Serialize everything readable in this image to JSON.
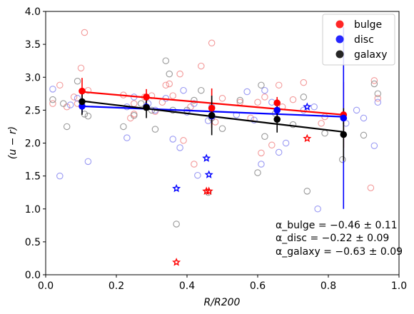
{
  "chart_data": {
    "type": "scatter",
    "xlabel": "R/R200",
    "ylabel": "(u − r)",
    "xlim": [
      0.0,
      1.0
    ],
    "ylim": [
      0.0,
      4.0
    ],
    "x_ticks": [
      "0.0",
      "0.2",
      "0.4",
      "0.6",
      "0.8",
      "1.0"
    ],
    "y_ticks": [
      "0.0",
      "0.5",
      "1.0",
      "1.5",
      "2.0",
      "2.5",
      "3.0",
      "3.5",
      "4.0"
    ],
    "x_tick_values": [
      0.0,
      0.2,
      0.4,
      0.6,
      0.8,
      1.0
    ],
    "y_tick_values": [
      0.0,
      0.5,
      1.0,
      1.5,
      2.0,
      2.5,
      3.0,
      3.5,
      4.0
    ],
    "grid": false,
    "legend_position": "top-right",
    "legend": [
      "bulge",
      "disc",
      "galaxy"
    ],
    "colors": {
      "bulge": "#ff0000",
      "disc": "#0000ff",
      "galaxy": "#000000"
    },
    "annotations": [
      "α_bulge = −0.46 ± 0.11",
      "α_disc = −0.22 ± 0.09",
      "α_galaxy = −0.63 ± 0.09"
    ],
    "binned_series": [
      {
        "name": "bulge",
        "color": "#ff0000",
        "x": [
          0.103,
          0.285,
          0.47,
          0.655,
          0.843
        ],
        "y": [
          2.79,
          2.7,
          2.53,
          2.61,
          2.43
        ],
        "err": [
          0.2,
          0.12,
          0.3,
          0.09,
          0.5
        ]
      },
      {
        "name": "disc",
        "color": "#0000ff",
        "x": [
          0.103,
          0.285,
          0.47,
          0.655,
          0.843
        ],
        "y": [
          2.56,
          2.55,
          2.41,
          2.5,
          2.38
        ],
        "err": [
          0.1,
          0.06,
          0.1,
          0.07,
          1.38
        ]
      },
      {
        "name": "galaxy",
        "color": "#000000",
        "x": [
          0.103,
          0.285,
          0.47,
          0.655,
          0.843
        ],
        "y": [
          2.63,
          2.54,
          2.42,
          2.36,
          2.13
        ],
        "err": [
          0.2,
          0.16,
          0.3,
          0.2,
          0.4
        ]
      }
    ],
    "fit_lines": [
      {
        "name": "bulge",
        "color": "#ff0000",
        "x": [
          0.1,
          0.843
        ],
        "y": [
          2.78,
          2.43
        ]
      },
      {
        "name": "disc",
        "color": "#0000ff",
        "x": [
          0.1,
          0.843
        ],
        "y": [
          2.56,
          2.4
        ]
      },
      {
        "name": "galaxy",
        "color": "#000000",
        "x": [
          0.1,
          0.843
        ],
        "y": [
          2.64,
          2.17
        ]
      }
    ],
    "outliers": [
      {
        "name": "bulge",
        "color": "#ff0000",
        "x": [
          0.37,
          0.455,
          0.462,
          0.74
        ],
        "y": [
          0.19,
          1.27,
          1.27,
          2.07
        ]
      },
      {
        "name": "disc",
        "color": "#0000ff",
        "x": [
          0.37,
          0.455,
          0.462,
          0.74
        ],
        "y": [
          1.31,
          1.77,
          1.52,
          2.55
        ]
      }
    ],
    "scatter": [
      {
        "name": "bulge",
        "color": "#f08080",
        "x": [
          0.02,
          0.04,
          0.06,
          0.08,
          0.09,
          0.1,
          0.11,
          0.12,
          0.22,
          0.24,
          0.25,
          0.25,
          0.28,
          0.3,
          0.31,
          0.33,
          0.34,
          0.35,
          0.36,
          0.38,
          0.39,
          0.41,
          0.42,
          0.44,
          0.47,
          0.48,
          0.5,
          0.55,
          0.58,
          0.6,
          0.61,
          0.62,
          0.64,
          0.66,
          0.67,
          0.7,
          0.73,
          0.78,
          0.79,
          0.93,
          0.94,
          0.92
        ],
        "y": [
          2.6,
          2.88,
          2.55,
          2.7,
          2.6,
          3.14,
          3.68,
          2.8,
          2.73,
          2.38,
          2.44,
          2.6,
          2.7,
          2.72,
          2.48,
          2.62,
          2.88,
          2.9,
          2.72,
          3.05,
          2.04,
          2.55,
          1.68,
          3.17,
          3.52,
          2.32,
          2.68,
          2.62,
          2.38,
          2.62,
          1.85,
          2.7,
          1.97,
          2.88,
          2.55,
          2.66,
          2.92,
          2.3,
          2.4,
          2.95,
          2.68,
          1.32
        ]
      },
      {
        "name": "disc",
        "color": "#8080f0",
        "x": [
          0.02,
          0.04,
          0.07,
          0.09,
          0.12,
          0.23,
          0.23,
          0.25,
          0.29,
          0.31,
          0.34,
          0.36,
          0.38,
          0.39,
          0.4,
          0.42,
          0.43,
          0.46,
          0.47,
          0.54,
          0.57,
          0.59,
          0.61,
          0.62,
          0.64,
          0.66,
          0.68,
          0.73,
          0.76,
          0.77,
          0.85,
          0.88,
          0.9,
          0.93,
          0.94
        ],
        "y": [
          2.82,
          1.5,
          2.58,
          2.68,
          1.72,
          2.55,
          2.08,
          2.7,
          2.6,
          2.5,
          2.68,
          2.06,
          1.93,
          2.8,
          2.47,
          2.6,
          1.51,
          2.34,
          2.55,
          2.43,
          2.78,
          2.35,
          1.68,
          2.8,
          2.62,
          1.86,
          2.0,
          2.5,
          2.55,
          1.0,
          2.3,
          2.5,
          2.38,
          1.96,
          2.62
        ]
      },
      {
        "name": "galaxy",
        "color": "#808080",
        "x": [
          0.02,
          0.05,
          0.06,
          0.09,
          0.11,
          0.12,
          0.22,
          0.25,
          0.27,
          0.3,
          0.31,
          0.34,
          0.35,
          0.36,
          0.37,
          0.4,
          0.42,
          0.44,
          0.46,
          0.47,
          0.5,
          0.55,
          0.6,
          0.61,
          0.62,
          0.65,
          0.7,
          0.73,
          0.74,
          0.79,
          0.84,
          0.9,
          0.93,
          0.94
        ],
        "y": [
          2.66,
          2.6,
          2.25,
          2.94,
          2.44,
          2.41,
          2.25,
          2.42,
          2.6,
          2.5,
          2.21,
          3.25,
          3.05,
          2.5,
          0.77,
          2.5,
          2.65,
          2.8,
          1.25,
          2.38,
          2.22,
          2.65,
          1.55,
          2.88,
          2.1,
          2.45,
          2.28,
          2.7,
          1.27,
          2.15,
          1.75,
          2.12,
          2.9,
          2.75
        ]
      }
    ]
  }
}
